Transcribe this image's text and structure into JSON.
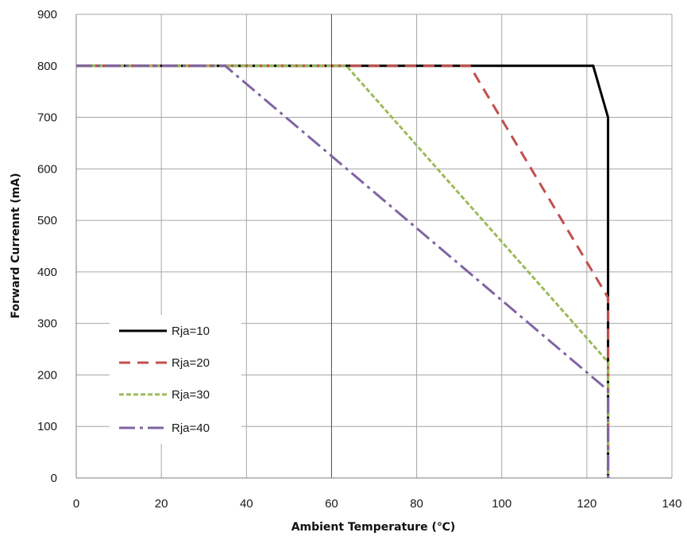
{
  "chart_data": {
    "type": "line",
    "xlabel": "Ambient Temperature (℃)",
    "ylabel": "Forward Currennt (mA)",
    "xlim": [
      0,
      140
    ],
    "ylim": [
      0,
      900
    ],
    "xticks": [
      0,
      20,
      40,
      60,
      80,
      100,
      120,
      140
    ],
    "yticks": [
      0,
      100,
      200,
      300,
      400,
      500,
      600,
      700,
      800,
      900
    ],
    "grid": true,
    "legend": "bottom-left",
    "series": [
      {
        "name": "Rja=10",
        "color": "#000000",
        "style": "solid",
        "x": [
          0,
          121.5,
          125,
          125
        ],
        "y": [
          800,
          800,
          700,
          0
        ]
      },
      {
        "name": "Rja=20",
        "color": "#c0504d",
        "style": "dashed",
        "x": [
          0,
          92.5,
          125,
          125
        ],
        "y": [
          800,
          800,
          350,
          0
        ]
      },
      {
        "name": "Rja=30",
        "color": "#9bbb59",
        "style": "dotted",
        "x": [
          0,
          63.5,
          125,
          125
        ],
        "y": [
          800,
          800,
          225,
          0
        ]
      },
      {
        "name": "Rja=40",
        "color": "#8064a2",
        "style": "dash-dot",
        "x": [
          0,
          35,
          125,
          125
        ],
        "y": [
          800,
          800,
          170,
          0
        ]
      }
    ]
  }
}
